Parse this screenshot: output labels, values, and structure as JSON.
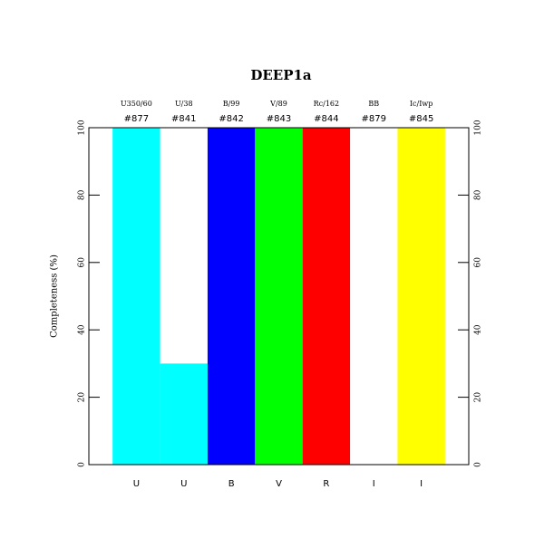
{
  "chart_data": {
    "type": "bar",
    "title": "DEEP1a",
    "y_label": "Completeness (%)",
    "categories": [
      "U",
      "U",
      "B",
      "V",
      "R",
      "I",
      "I"
    ],
    "filters": [
      "U350/60",
      "U/38",
      "B/99",
      "V/89",
      "Rc/162",
      "BB",
      "Ic/Iwp"
    ],
    "ids": [
      "#877",
      "#841",
      "#842",
      "#843",
      "#844",
      "#879",
      "#845"
    ],
    "values": [
      100,
      30,
      100,
      100,
      100,
      0,
      100
    ],
    "colors": [
      "#00ffff",
      "#00ffff",
      "#0000ff",
      "#00ff00",
      "#ff0000",
      "#ffffff",
      "#ffff00"
    ],
    "ylim": [
      0,
      100
    ],
    "yticks": [
      0,
      20,
      40,
      60,
      80,
      100
    ]
  }
}
